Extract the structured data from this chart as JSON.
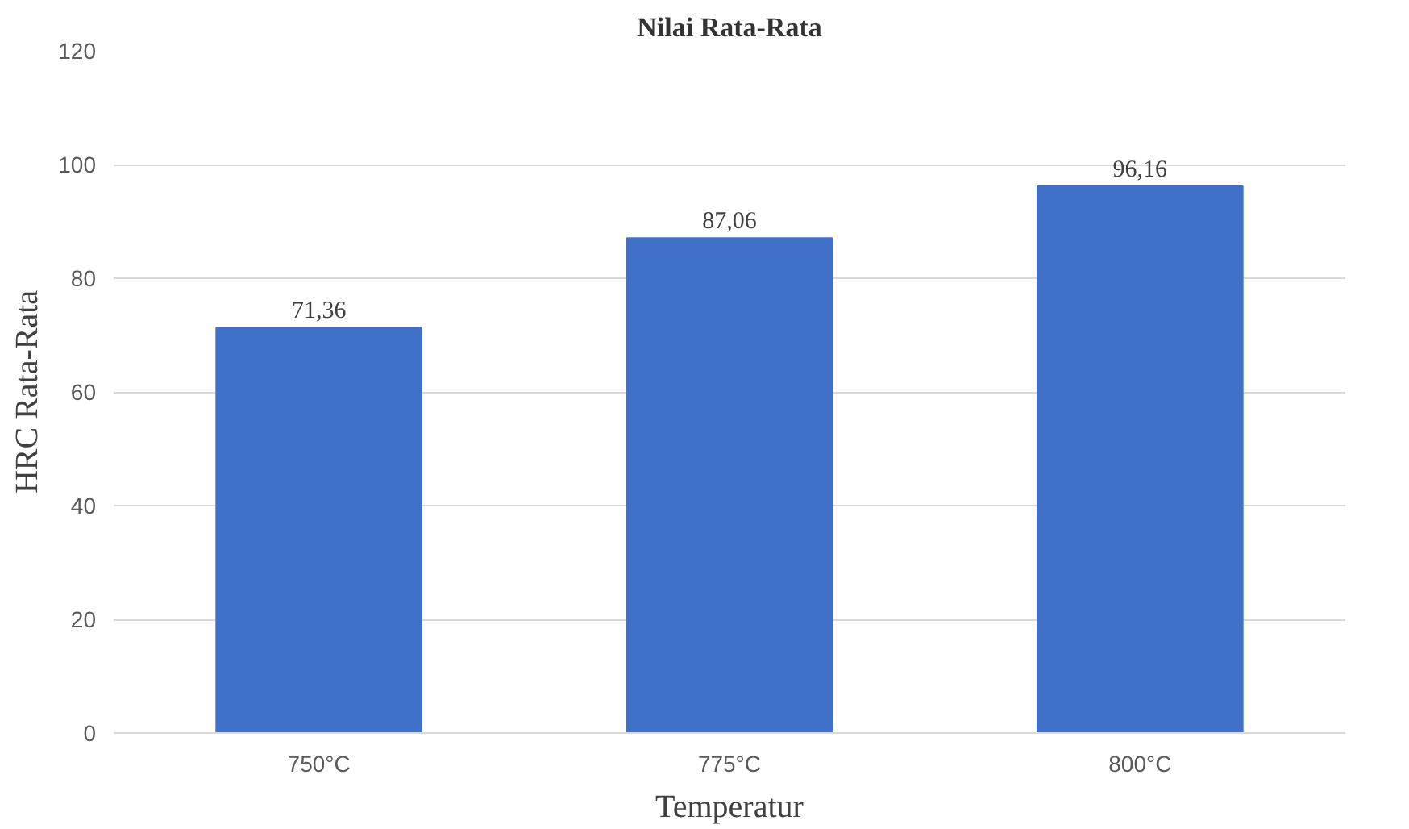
{
  "chart_data": {
    "type": "bar",
    "title": "Nilai Rata-Rata",
    "xlabel": "Temperatur",
    "ylabel": "HRC Rata-Rata",
    "categories": [
      "750°C",
      "775°C",
      "800°C"
    ],
    "values": [
      71.36,
      87.06,
      96.16
    ],
    "value_labels": [
      "71,36",
      "87,06",
      "96,16"
    ],
    "color": "#4170c8",
    "ylim": [
      0,
      120
    ],
    "yticks": [
      0,
      20,
      40,
      60,
      80,
      100,
      120
    ],
    "grid": "y"
  }
}
